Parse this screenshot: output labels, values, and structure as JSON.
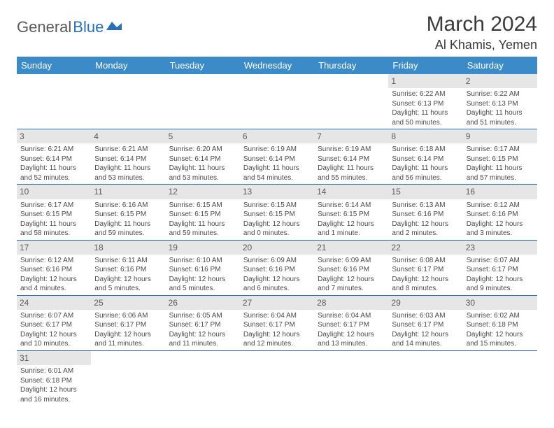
{
  "brand": {
    "part1": "General",
    "part2": "Blue",
    "color1": "#5a5a5a",
    "color2": "#2a70b8"
  },
  "title": "March 2024",
  "location": "Al Khamis, Yemen",
  "header_bg": "#3b8bc9",
  "daynum_bg": "#e6e6e6",
  "row_border": "#2a70b8",
  "weekdays": [
    "Sunday",
    "Monday",
    "Tuesday",
    "Wednesday",
    "Thursday",
    "Friday",
    "Saturday"
  ],
  "weeks": [
    [
      null,
      null,
      null,
      null,
      null,
      {
        "n": "1",
        "sr": "Sunrise: 6:22 AM",
        "ss": "Sunset: 6:13 PM",
        "dl": "Daylight: 11 hours and 50 minutes."
      },
      {
        "n": "2",
        "sr": "Sunrise: 6:22 AM",
        "ss": "Sunset: 6:13 PM",
        "dl": "Daylight: 11 hours and 51 minutes."
      }
    ],
    [
      {
        "n": "3",
        "sr": "Sunrise: 6:21 AM",
        "ss": "Sunset: 6:14 PM",
        "dl": "Daylight: 11 hours and 52 minutes."
      },
      {
        "n": "4",
        "sr": "Sunrise: 6:21 AM",
        "ss": "Sunset: 6:14 PM",
        "dl": "Daylight: 11 hours and 53 minutes."
      },
      {
        "n": "5",
        "sr": "Sunrise: 6:20 AM",
        "ss": "Sunset: 6:14 PM",
        "dl": "Daylight: 11 hours and 53 minutes."
      },
      {
        "n": "6",
        "sr": "Sunrise: 6:19 AM",
        "ss": "Sunset: 6:14 PM",
        "dl": "Daylight: 11 hours and 54 minutes."
      },
      {
        "n": "7",
        "sr": "Sunrise: 6:19 AM",
        "ss": "Sunset: 6:14 PM",
        "dl": "Daylight: 11 hours and 55 minutes."
      },
      {
        "n": "8",
        "sr": "Sunrise: 6:18 AM",
        "ss": "Sunset: 6:14 PM",
        "dl": "Daylight: 11 hours and 56 minutes."
      },
      {
        "n": "9",
        "sr": "Sunrise: 6:17 AM",
        "ss": "Sunset: 6:15 PM",
        "dl": "Daylight: 11 hours and 57 minutes."
      }
    ],
    [
      {
        "n": "10",
        "sr": "Sunrise: 6:17 AM",
        "ss": "Sunset: 6:15 PM",
        "dl": "Daylight: 11 hours and 58 minutes."
      },
      {
        "n": "11",
        "sr": "Sunrise: 6:16 AM",
        "ss": "Sunset: 6:15 PM",
        "dl": "Daylight: 11 hours and 59 minutes."
      },
      {
        "n": "12",
        "sr": "Sunrise: 6:15 AM",
        "ss": "Sunset: 6:15 PM",
        "dl": "Daylight: 11 hours and 59 minutes."
      },
      {
        "n": "13",
        "sr": "Sunrise: 6:15 AM",
        "ss": "Sunset: 6:15 PM",
        "dl": "Daylight: 12 hours and 0 minutes."
      },
      {
        "n": "14",
        "sr": "Sunrise: 6:14 AM",
        "ss": "Sunset: 6:15 PM",
        "dl": "Daylight: 12 hours and 1 minute."
      },
      {
        "n": "15",
        "sr": "Sunrise: 6:13 AM",
        "ss": "Sunset: 6:16 PM",
        "dl": "Daylight: 12 hours and 2 minutes."
      },
      {
        "n": "16",
        "sr": "Sunrise: 6:12 AM",
        "ss": "Sunset: 6:16 PM",
        "dl": "Daylight: 12 hours and 3 minutes."
      }
    ],
    [
      {
        "n": "17",
        "sr": "Sunrise: 6:12 AM",
        "ss": "Sunset: 6:16 PM",
        "dl": "Daylight: 12 hours and 4 minutes."
      },
      {
        "n": "18",
        "sr": "Sunrise: 6:11 AM",
        "ss": "Sunset: 6:16 PM",
        "dl": "Daylight: 12 hours and 5 minutes."
      },
      {
        "n": "19",
        "sr": "Sunrise: 6:10 AM",
        "ss": "Sunset: 6:16 PM",
        "dl": "Daylight: 12 hours and 5 minutes."
      },
      {
        "n": "20",
        "sr": "Sunrise: 6:09 AM",
        "ss": "Sunset: 6:16 PM",
        "dl": "Daylight: 12 hours and 6 minutes."
      },
      {
        "n": "21",
        "sr": "Sunrise: 6:09 AM",
        "ss": "Sunset: 6:16 PM",
        "dl": "Daylight: 12 hours and 7 minutes."
      },
      {
        "n": "22",
        "sr": "Sunrise: 6:08 AM",
        "ss": "Sunset: 6:17 PM",
        "dl": "Daylight: 12 hours and 8 minutes."
      },
      {
        "n": "23",
        "sr": "Sunrise: 6:07 AM",
        "ss": "Sunset: 6:17 PM",
        "dl": "Daylight: 12 hours and 9 minutes."
      }
    ],
    [
      {
        "n": "24",
        "sr": "Sunrise: 6:07 AM",
        "ss": "Sunset: 6:17 PM",
        "dl": "Daylight: 12 hours and 10 minutes."
      },
      {
        "n": "25",
        "sr": "Sunrise: 6:06 AM",
        "ss": "Sunset: 6:17 PM",
        "dl": "Daylight: 12 hours and 11 minutes."
      },
      {
        "n": "26",
        "sr": "Sunrise: 6:05 AM",
        "ss": "Sunset: 6:17 PM",
        "dl": "Daylight: 12 hours and 11 minutes."
      },
      {
        "n": "27",
        "sr": "Sunrise: 6:04 AM",
        "ss": "Sunset: 6:17 PM",
        "dl": "Daylight: 12 hours and 12 minutes."
      },
      {
        "n": "28",
        "sr": "Sunrise: 6:04 AM",
        "ss": "Sunset: 6:17 PM",
        "dl": "Daylight: 12 hours and 13 minutes."
      },
      {
        "n": "29",
        "sr": "Sunrise: 6:03 AM",
        "ss": "Sunset: 6:17 PM",
        "dl": "Daylight: 12 hours and 14 minutes."
      },
      {
        "n": "30",
        "sr": "Sunrise: 6:02 AM",
        "ss": "Sunset: 6:18 PM",
        "dl": "Daylight: 12 hours and 15 minutes."
      }
    ],
    [
      {
        "n": "31",
        "sr": "Sunrise: 6:01 AM",
        "ss": "Sunset: 6:18 PM",
        "dl": "Daylight: 12 hours and 16 minutes."
      },
      null,
      null,
      null,
      null,
      null,
      null
    ]
  ]
}
